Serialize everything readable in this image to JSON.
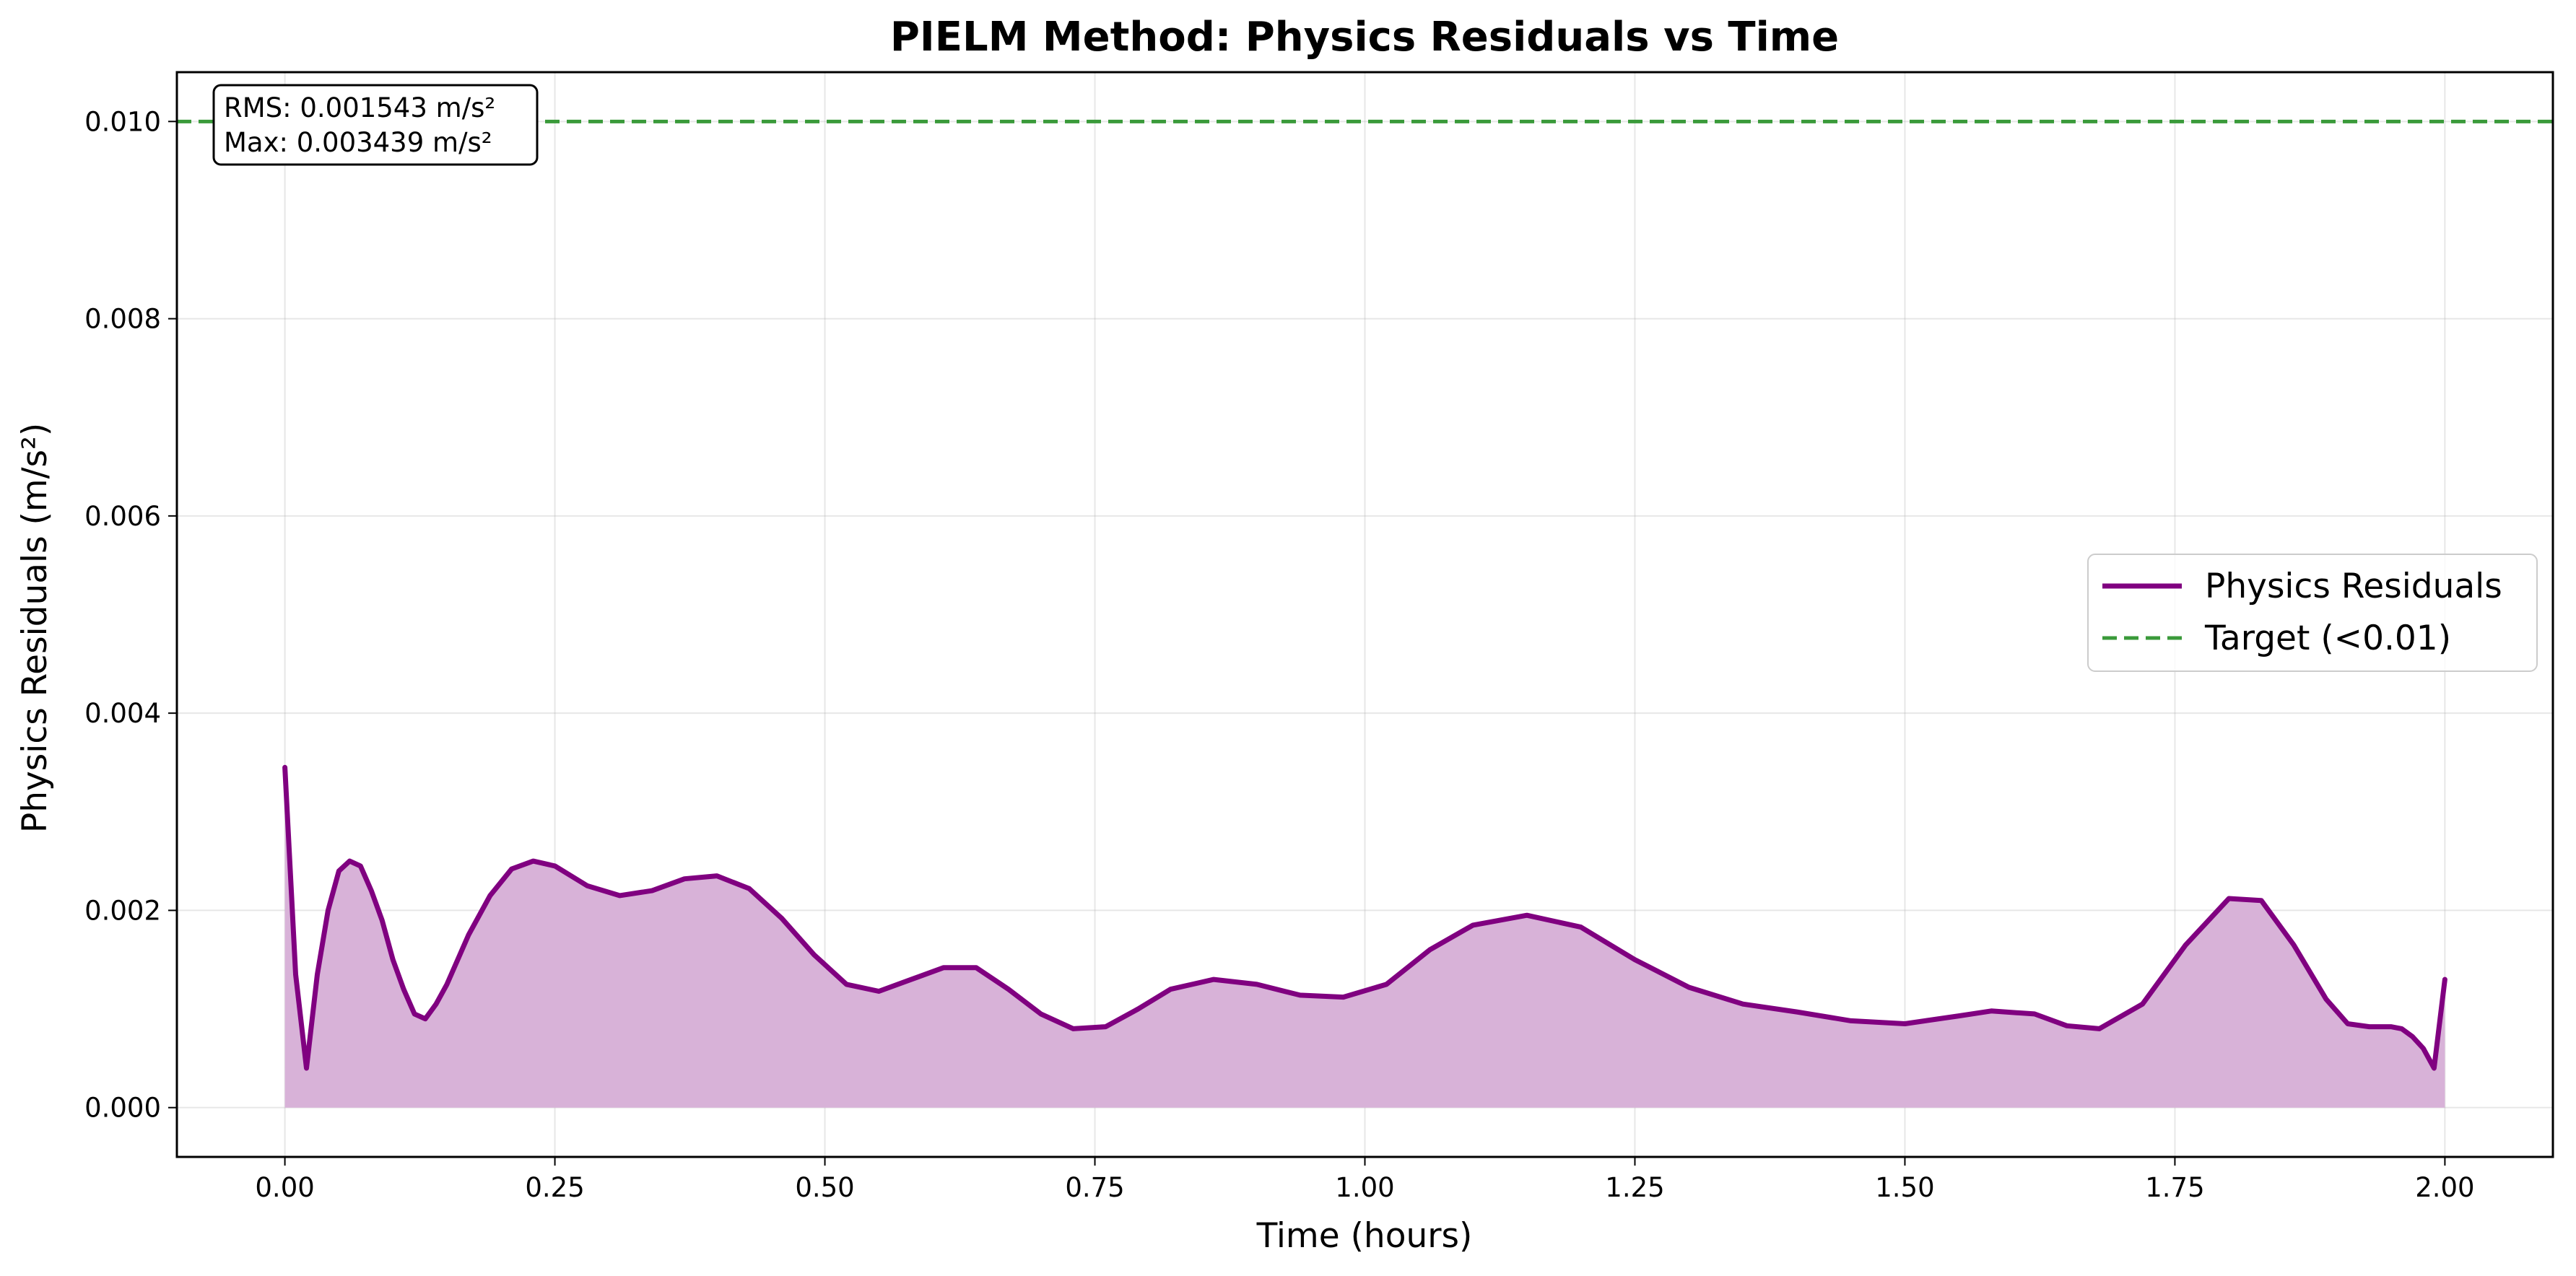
{
  "chart_data": {
    "type": "line",
    "title": "PIELM Method: Physics Residuals vs Time",
    "xlabel": "Time (hours)",
    "ylabel": "Physics Residuals (m/s²)",
    "xlim": [
      -0.1,
      2.1
    ],
    "ylim": [
      -0.0005,
      0.0105
    ],
    "xticks": [
      0.0,
      0.25,
      0.5,
      0.75,
      1.0,
      1.25,
      1.5,
      1.75,
      2.0
    ],
    "xtick_labels": [
      "0.00",
      "0.25",
      "0.50",
      "0.75",
      "1.00",
      "1.25",
      "1.50",
      "1.75",
      "2.00"
    ],
    "yticks": [
      0.0,
      0.002,
      0.004,
      0.006,
      0.008,
      0.01
    ],
    "ytick_labels": [
      "0.000",
      "0.002",
      "0.004",
      "0.006",
      "0.008",
      "0.010"
    ],
    "grid": true,
    "legend_position": "center-right",
    "stats_box": {
      "line1": "RMS: 0.001543 m/s²",
      "line2": "Max: 0.003439 m/s²"
    },
    "series": [
      {
        "name": "Physics Residuals",
        "color": "#800080",
        "fill_color": "#d8b2d8",
        "style": "solid",
        "x": [
          0.0,
          0.01,
          0.02,
          0.03,
          0.04,
          0.05,
          0.06,
          0.07,
          0.08,
          0.09,
          0.1,
          0.11,
          0.12,
          0.13,
          0.14,
          0.15,
          0.17,
          0.19,
          0.21,
          0.23,
          0.25,
          0.28,
          0.31,
          0.34,
          0.37,
          0.4,
          0.43,
          0.46,
          0.49,
          0.52,
          0.55,
          0.58,
          0.61,
          0.64,
          0.67,
          0.7,
          0.73,
          0.76,
          0.79,
          0.82,
          0.86,
          0.9,
          0.94,
          0.98,
          1.02,
          1.06,
          1.1,
          1.15,
          1.2,
          1.25,
          1.3,
          1.35,
          1.4,
          1.45,
          1.5,
          1.55,
          1.58,
          1.62,
          1.65,
          1.68,
          1.72,
          1.76,
          1.8,
          1.83,
          1.86,
          1.89,
          1.91,
          1.93,
          1.95,
          1.96,
          1.97,
          1.98,
          1.99,
          2.0
        ],
        "y": [
          0.00345,
          0.00135,
          0.0004,
          0.00135,
          0.002,
          0.0024,
          0.0025,
          0.00245,
          0.0022,
          0.0019,
          0.0015,
          0.0012,
          0.00095,
          0.0009,
          0.00105,
          0.00125,
          0.00175,
          0.00215,
          0.00242,
          0.0025,
          0.00245,
          0.00225,
          0.00215,
          0.0022,
          0.00232,
          0.00235,
          0.00222,
          0.00192,
          0.00155,
          0.00125,
          0.00118,
          0.0013,
          0.00142,
          0.00142,
          0.0012,
          0.00095,
          0.0008,
          0.00082,
          0.001,
          0.0012,
          0.0013,
          0.00125,
          0.00114,
          0.00112,
          0.00125,
          0.0016,
          0.00185,
          0.00195,
          0.00183,
          0.0015,
          0.00122,
          0.00105,
          0.00097,
          0.00088,
          0.00085,
          0.00093,
          0.00098,
          0.00095,
          0.00083,
          0.0008,
          0.00105,
          0.00165,
          0.00212,
          0.0021,
          0.00165,
          0.0011,
          0.00085,
          0.00082,
          0.00082,
          0.0008,
          0.00072,
          0.0006,
          0.0004,
          0.0013
        ]
      },
      {
        "name": "Target (<0.01)",
        "color": "#3a9a3a",
        "style": "dashed",
        "y_constant": 0.01
      }
    ]
  }
}
